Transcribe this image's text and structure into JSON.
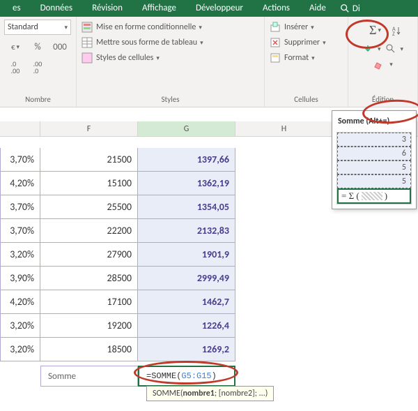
{
  "tabs": [
    "es",
    "Données",
    "Révision",
    "Affichage",
    "Développeur",
    "Actions",
    "Aide",
    "Di"
  ],
  "ribbon": {
    "nombre": {
      "label": "Nombre",
      "format": "Standard",
      "currency": "€",
      "percent": "%",
      "thousands": "000",
      "dec_inc": "←0\n.00",
      "dec_dec": ".00\n→0"
    },
    "styles": {
      "label": "Styles",
      "cond": "Mise en forme conditionnelle",
      "table": "Mettre sous forme de tableau",
      "cell": "Styles de cellules"
    },
    "cellules": {
      "label": "Cellules",
      "insert": "Insérer",
      "delete": "Supprimer",
      "format": "Format"
    },
    "edition": {
      "label": "Édition"
    }
  },
  "popup": {
    "title": "Somme (Alt+=)",
    "vals": [
      "3",
      "6",
      "5",
      "5"
    ]
  },
  "cols": {
    "e_label": "",
    "f_label": "F",
    "g_label": "G",
    "h_label": "H"
  },
  "rows": [
    {
      "e": "3,70%",
      "f": "21500",
      "g": "1397,66"
    },
    {
      "e": "4,20%",
      "f": "15100",
      "g": "1362,19"
    },
    {
      "e": "3,70%",
      "f": "25500",
      "g": "1354,05"
    },
    {
      "e": "3,70%",
      "f": "22200",
      "g": "2132,83"
    },
    {
      "e": "3,20%",
      "f": "27900",
      "g": "1901,9"
    },
    {
      "e": "3,90%",
      "f": "28500",
      "g": "2999,49"
    },
    {
      "e": "4,20%",
      "f": "17100",
      "g": "1462,7"
    },
    {
      "e": "3,20%",
      "f": "19200",
      "g": "1226,4"
    },
    {
      "e": "3,20%",
      "f": "18500",
      "g": "1269,2"
    }
  ],
  "sum_row": {
    "label": "Somme",
    "formula_prefix": "=SOMME(",
    "formula_range": "G5:G15",
    "formula_suffix": ")"
  },
  "tooltip": {
    "fn": "SOMME(",
    "arg1": "nombre1",
    "rest": "; [nombre2]; ...)"
  },
  "colors": {
    "ribbon_green": "#217346",
    "cell_border": "#b4a7d6",
    "selected_bg": "#e8edf7",
    "value_purple": "#4a3d8f",
    "circle_red": "#c0392b"
  }
}
